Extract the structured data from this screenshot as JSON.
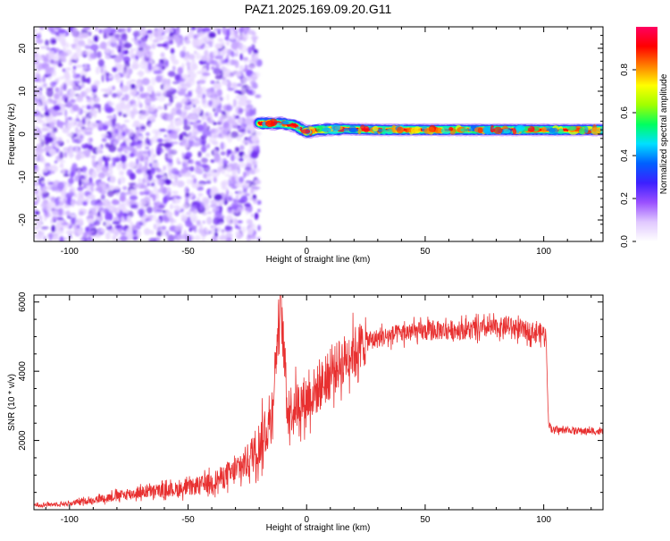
{
  "figure": {
    "title": "PAZ1.2025.169.09.20.G11"
  },
  "chart_data": [
    {
      "type": "heatmap",
      "xlabel": "Height of straight line (km)",
      "ylabel": "Frequency (Hz)",
      "xlim": [
        -115,
        125
      ],
      "ylim": [
        -25,
        25
      ],
      "x_ticks": [
        -100,
        -50,
        0,
        50,
        100
      ],
      "y_ticks": [
        -20,
        -10,
        0,
        10,
        20
      ],
      "colorbar": {
        "label": "Normalized spectral amplitude",
        "range": [
          0,
          1
        ],
        "ticks": [
          0.0,
          0.2,
          0.4,
          0.6,
          0.8
        ],
        "colormap": [
          "#ffffff",
          "#e0c8ff",
          "#9a50ff",
          "#3c20ff",
          "#0060ff",
          "#00e0ff",
          "#00ff60",
          "#a0ff00",
          "#ffff00",
          "#ff8000",
          "#ff0000",
          "#ff0060"
        ]
      },
      "regions": {
        "noise": {
          "x_range": [
            -115,
            -20
          ],
          "y_range": [
            -25,
            25
          ],
          "amplitude_range": [
            0.0,
            0.25
          ]
        },
        "signal_ridge": [
          {
            "x": -20,
            "y": 2.5
          },
          {
            "x": -10,
            "y": 2.5
          },
          {
            "x": -5,
            "y": 2.0
          },
          {
            "x": 0,
            "y": 0.5
          },
          {
            "x": 5,
            "y": 1.0
          },
          {
            "x": 15,
            "y": 1.2
          },
          {
            "x": 30,
            "y": 1.0
          },
          {
            "x": 60,
            "y": 1.0
          },
          {
            "x": 100,
            "y": 1.0
          },
          {
            "x": 125,
            "y": 1.0
          }
        ]
      }
    },
    {
      "type": "line",
      "xlabel": "Height of straight line (km)",
      "ylabel": "SNR (10 * v/v)",
      "xlim": [
        -115,
        125
      ],
      "ylim": [
        0,
        6200
      ],
      "x_ticks": [
        -100,
        -50,
        0,
        50,
        100
      ],
      "y_ticks": [
        2000,
        4000,
        6000
      ],
      "series": [
        {
          "color": "#e83030",
          "envelope": [
            {
              "x": -115,
              "y": 130
            },
            {
              "x": -100,
              "y": 180
            },
            {
              "x": -90,
              "y": 280
            },
            {
              "x": -80,
              "y": 400
            },
            {
              "x": -70,
              "y": 500
            },
            {
              "x": -60,
              "y": 560
            },
            {
              "x": -50,
              "y": 620
            },
            {
              "x": -40,
              "y": 800
            },
            {
              "x": -30,
              "y": 1100
            },
            {
              "x": -25,
              "y": 1400
            },
            {
              "x": -20,
              "y": 1900
            },
            {
              "x": -15,
              "y": 2600
            },
            {
              "x": -11,
              "y": 6100
            },
            {
              "x": -8,
              "y": 2900
            },
            {
              "x": -5,
              "y": 3000
            },
            {
              "x": 0,
              "y": 3200
            },
            {
              "x": 5,
              "y": 3500
            },
            {
              "x": 10,
              "y": 3900
            },
            {
              "x": 15,
              "y": 4300
            },
            {
              "x": 20,
              "y": 4600
            },
            {
              "x": 25,
              "y": 4850
            },
            {
              "x": 30,
              "y": 4950
            },
            {
              "x": 40,
              "y": 5100
            },
            {
              "x": 50,
              "y": 5150
            },
            {
              "x": 60,
              "y": 5200
            },
            {
              "x": 70,
              "y": 5200
            },
            {
              "x": 80,
              "y": 5250
            },
            {
              "x": 85,
              "y": 5300
            },
            {
              "x": 90,
              "y": 5200
            },
            {
              "x": 95,
              "y": 5150
            },
            {
              "x": 100,
              "y": 5100
            },
            {
              "x": 101,
              "y": 5000
            },
            {
              "x": 102,
              "y": 2500
            },
            {
              "x": 104,
              "y": 2300
            },
            {
              "x": 110,
              "y": 2300
            },
            {
              "x": 125,
              "y": 2250
            }
          ]
        }
      ]
    }
  ]
}
